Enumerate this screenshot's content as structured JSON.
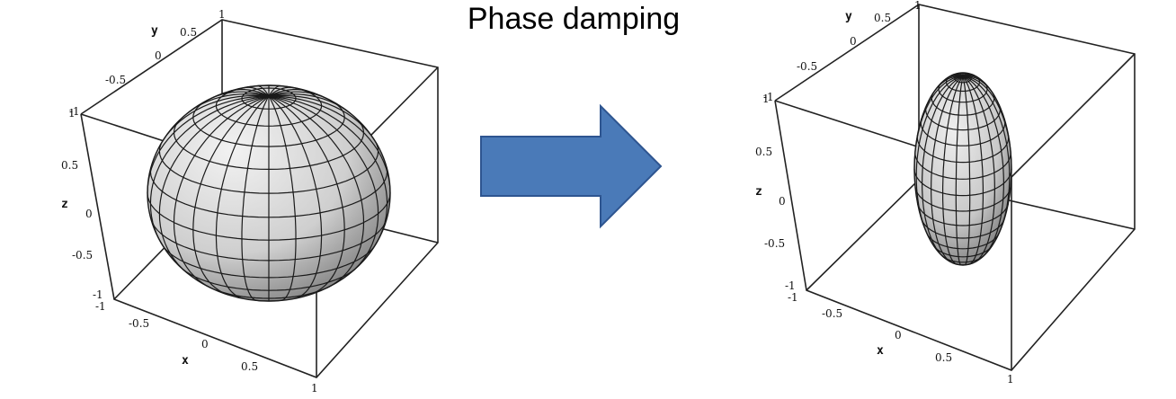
{
  "title": "Phase damping",
  "colors": {
    "arrow_fill": "#4a7ab8",
    "arrow_stroke": "#2e5590",
    "surface_light": "#e6e6e6",
    "surface_dark": "#7a7a7a"
  },
  "left_plot": {
    "shape": "sphere",
    "axes": {
      "x": {
        "label": "x",
        "ticks": [
          "-1",
          "-0.5",
          "0",
          "0.5",
          "1"
        ]
      },
      "y": {
        "label": "y",
        "ticks": [
          "-1",
          "-0.5",
          "0",
          "0.5",
          "1"
        ]
      },
      "z": {
        "label": "z",
        "ticks": [
          "-1",
          "-0.5",
          "0",
          "0.5",
          "1"
        ]
      }
    }
  },
  "right_plot": {
    "shape": "ellipsoid",
    "axes": {
      "x": {
        "label": "x",
        "ticks": [
          "-1",
          "-0.5",
          "0",
          "0.5",
          "1"
        ]
      },
      "y": {
        "label": "y",
        "ticks": [
          "-1",
          "-0.5",
          "0",
          "0.5",
          "1"
        ]
      },
      "z": {
        "label": "z",
        "ticks": [
          "-1",
          "-0.5",
          "0",
          "0.5",
          "1"
        ]
      }
    }
  }
}
